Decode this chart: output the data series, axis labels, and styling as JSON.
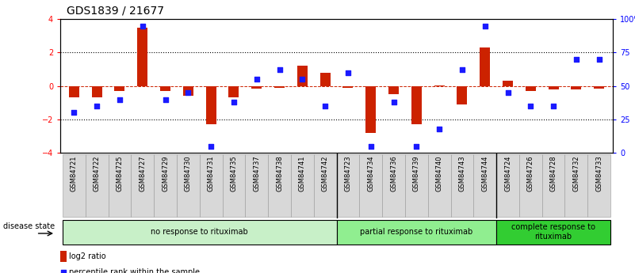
{
  "title": "GDS1839 / 21677",
  "samples": [
    "GSM84721",
    "GSM84722",
    "GSM84725",
    "GSM84727",
    "GSM84729",
    "GSM84730",
    "GSM84731",
    "GSM84735",
    "GSM84737",
    "GSM84738",
    "GSM84741",
    "GSM84742",
    "GSM84723",
    "GSM84734",
    "GSM84736",
    "GSM84739",
    "GSM84740",
    "GSM84743",
    "GSM84744",
    "GSM84724",
    "GSM84726",
    "GSM84728",
    "GSM84732",
    "GSM84733"
  ],
  "log2_ratio": [
    -0.7,
    -0.7,
    -0.3,
    3.5,
    -0.3,
    -0.6,
    -2.3,
    -0.7,
    -0.15,
    -0.1,
    1.2,
    0.8,
    -0.1,
    -2.8,
    -0.5,
    -2.3,
    0.05,
    -1.1,
    2.3,
    0.3,
    -0.3,
    -0.2,
    -0.2,
    -0.15
  ],
  "percentile_rank": [
    30,
    35,
    40,
    95,
    40,
    45,
    5,
    38,
    55,
    62,
    55,
    35,
    60,
    5,
    38,
    5,
    18,
    62,
    95,
    45,
    35,
    35,
    70,
    70
  ],
  "groups": [
    {
      "label": "no response to rituximab",
      "start": 0,
      "end": 12,
      "color": "#c8f0c8"
    },
    {
      "label": "partial response to rituximab",
      "start": 12,
      "end": 19,
      "color": "#90ee90"
    },
    {
      "label": "complete response to\nrituximab",
      "start": 19,
      "end": 24,
      "color": "#32cd32"
    }
  ],
  "ylim_left": [
    -4,
    4
  ],
  "ylim_right": [
    0,
    100
  ],
  "yticks_left": [
    -4,
    -2,
    0,
    2,
    4
  ],
  "yticks_right": [
    0,
    25,
    50,
    75,
    100
  ],
  "ytick_labels_right": [
    "0",
    "25",
    "50",
    "75",
    "100%"
  ],
  "bar_color": "#cc2200",
  "dot_color": "#1a1aff",
  "background_color": "#ffffff",
  "grid_color": "#000000",
  "hline_color": "#cc2200",
  "legend_log2_label": "log2 ratio",
  "legend_pct_label": "percentile rank within the sample",
  "disease_state_label": "disease state",
  "title_fontsize": 10,
  "tick_fontsize": 7,
  "label_fontsize": 7,
  "sample_label_fontsize": 6,
  "group_label_fontsize": 7
}
